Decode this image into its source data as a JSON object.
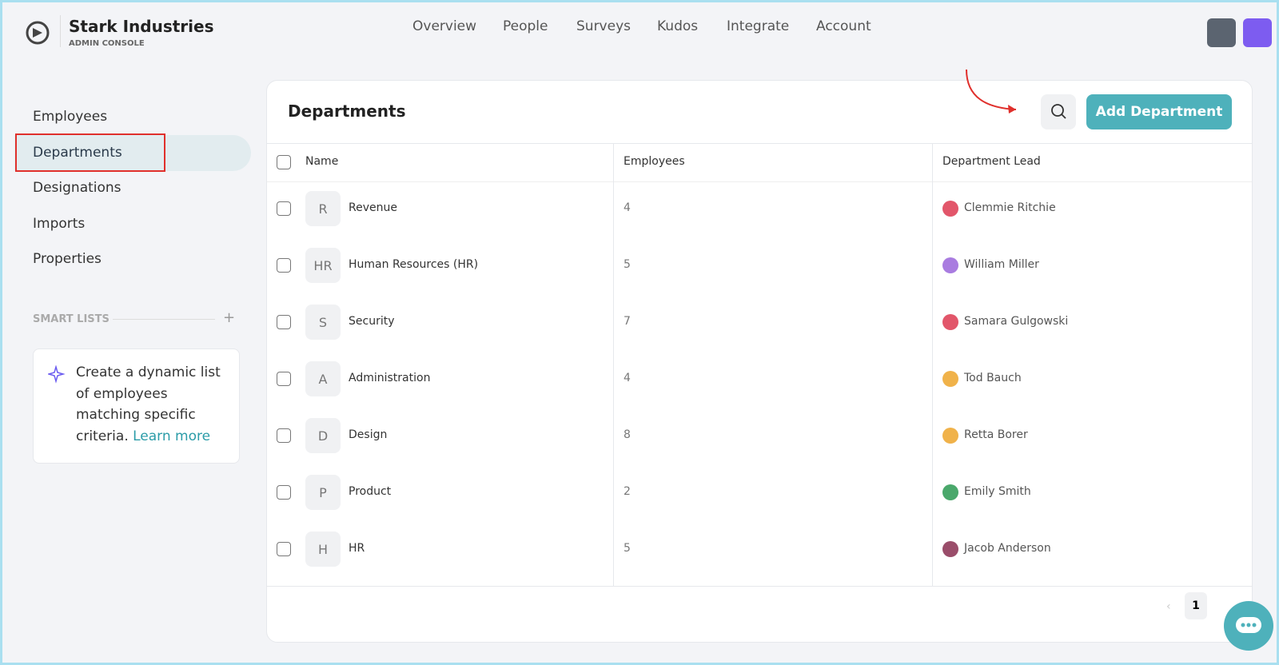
{
  "header": {
    "brand": "Stark Industries",
    "subtitle": "ADMIN CONSOLE",
    "nav": [
      "Overview",
      "People",
      "Surveys",
      "Kudos",
      "Integrate",
      "Account"
    ]
  },
  "sidebar": {
    "items": [
      "Employees",
      "Departments",
      "Designations",
      "Imports",
      "Properties"
    ],
    "active": 1,
    "smart_lists_label": "SMART LISTS",
    "card_text": "Create a dynamic list of employees matching specific criteria.",
    "card_link": "Learn more"
  },
  "panel": {
    "title": "Departments",
    "button": "Add Department"
  },
  "table": {
    "columns": [
      "Name",
      "Employees",
      "Department Lead"
    ],
    "rows": [
      [
        "R",
        "Revenue",
        "4",
        "Clemmie Ritchie"
      ],
      [
        "HR",
        "Human Resources (HR)",
        "5",
        "William Miller"
      ],
      [
        "S",
        "Security",
        "7",
        "Samara Gulgowski"
      ],
      [
        "A",
        "Administration",
        "4",
        "Tod Bauch"
      ],
      [
        "D",
        "Design",
        "8",
        "Retta Borer"
      ],
      [
        "P",
        "Product",
        "2",
        "Emily Smith"
      ],
      [
        "H",
        "HR",
        "5",
        "Jacob Anderson"
      ]
    ]
  },
  "pagination": {
    "page": "1"
  }
}
